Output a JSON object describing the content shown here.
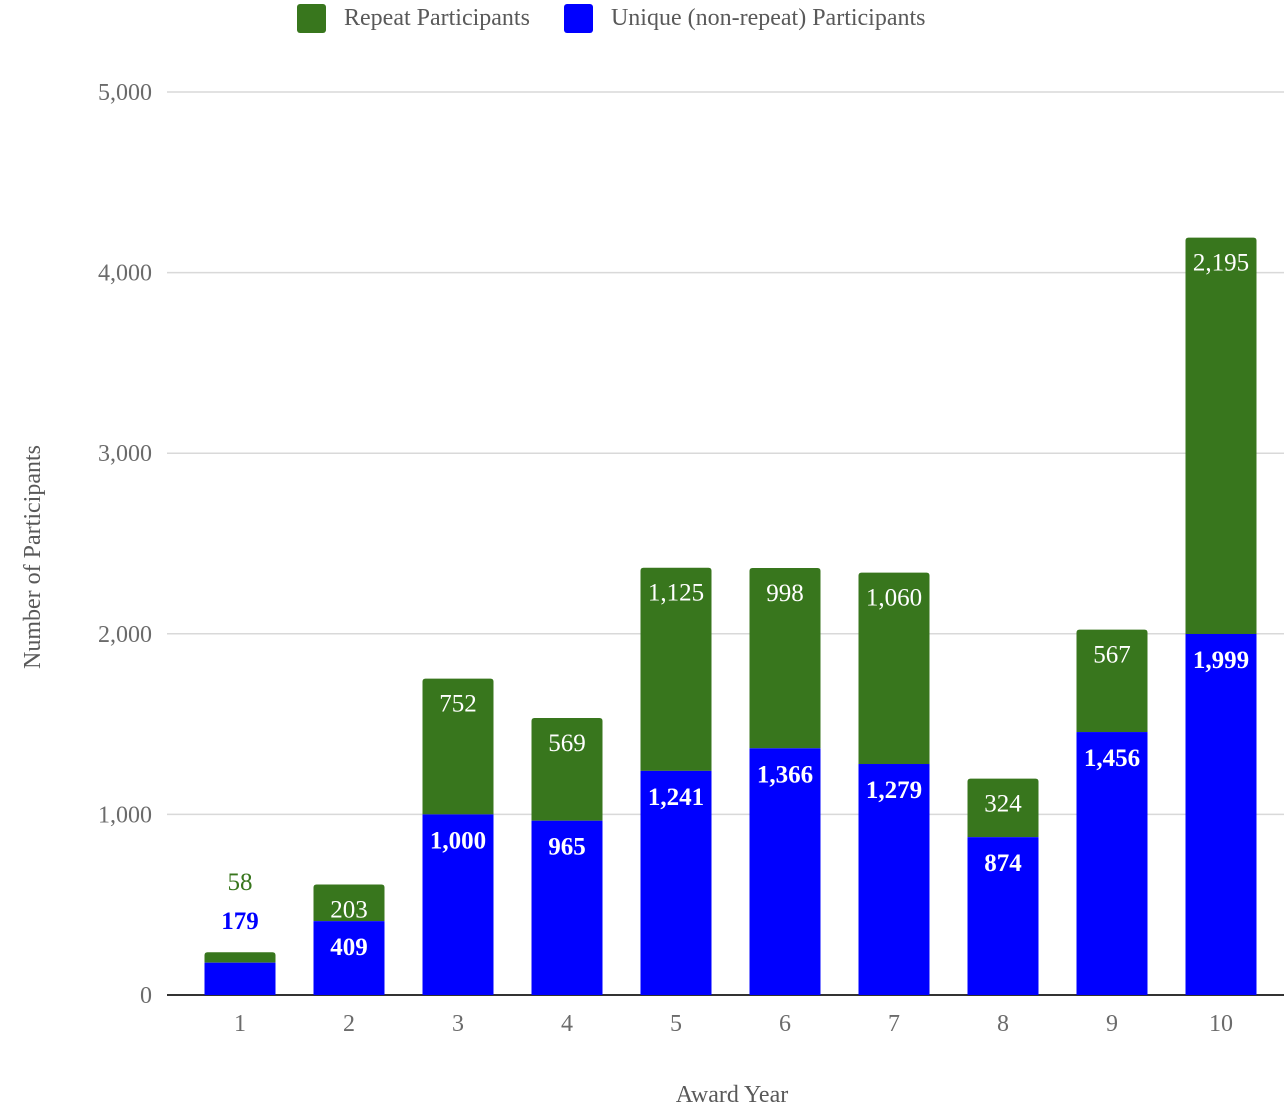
{
  "legend": {
    "items": [
      {
        "label": "Repeat Participants",
        "color": "#38761d"
      },
      {
        "label": "Unique (non-repeat) Participants",
        "color": "#0000ff"
      }
    ]
  },
  "chart_data": {
    "type": "bar",
    "stacked": true,
    "title": "",
    "xlabel": "Award Year",
    "ylabel": "Number of Participants",
    "categories": [
      "1",
      "2",
      "3",
      "4",
      "5",
      "6",
      "7",
      "8",
      "9",
      "10"
    ],
    "series": [
      {
        "name": "Unique (non-repeat) Participants",
        "color": "#0000ff",
        "values": [
          179,
          409,
          1000,
          965,
          1241,
          1366,
          1279,
          874,
          1456,
          1999
        ]
      },
      {
        "name": "Repeat Participants",
        "color": "#38761d",
        "values": [
          58,
          203,
          752,
          569,
          1125,
          998,
          1060,
          324,
          567,
          2195
        ]
      }
    ],
    "ylim": [
      0,
      5000
    ],
    "yticks": [
      0,
      1000,
      2000,
      3000,
      4000,
      5000
    ],
    "ytick_labels": [
      "0",
      "1,000",
      "2,000",
      "3,000",
      "4,000",
      "5,000"
    ],
    "grid": true,
    "legend_position": "top"
  }
}
